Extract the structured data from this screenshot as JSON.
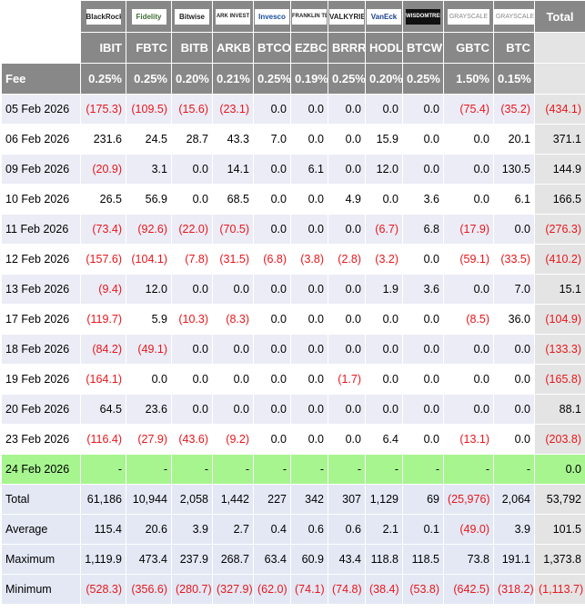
{
  "header": {
    "issuers": [
      "BlackRock",
      "Fidelity",
      "Bitwise",
      "ARK INVEST",
      "Invesco",
      "FRANKLIN TEMPLETON",
      "VALKYRIE",
      "VanEck",
      "WISDOMTREE",
      "GRAYSCALE",
      "GRAYSCALE"
    ],
    "total_label": "Total",
    "tickers": [
      "IBIT",
      "FBTC",
      "BITB",
      "ARKB",
      "BTCO",
      "EZBC",
      "BRRR",
      "HODL",
      "BTCW",
      "GBTC",
      "BTC"
    ],
    "fee_label": "Fee",
    "fees": [
      "0.25%",
      "0.25%",
      "0.20%",
      "0.21%",
      "0.25%",
      "0.19%",
      "0.25%",
      "0.20%",
      "0.25%",
      "1.50%",
      "0.15%"
    ]
  },
  "rows": [
    {
      "date": "05 Feb 2026",
      "values": [
        "(175.3)",
        "(109.5)",
        "(15.6)",
        "(23.1)",
        "0.0",
        "0.0",
        "0.0",
        "0.0",
        "0.0",
        "(75.4)",
        "(35.2)"
      ],
      "total": "(434.1)"
    },
    {
      "date": "06 Feb 2026",
      "values": [
        "231.6",
        "24.5",
        "28.7",
        "43.3",
        "7.0",
        "0.0",
        "0.0",
        "15.9",
        "0.0",
        "0.0",
        "20.1"
      ],
      "total": "371.1"
    },
    {
      "date": "09 Feb 2026",
      "values": [
        "(20.9)",
        "3.1",
        "0.0",
        "14.1",
        "0.0",
        "6.1",
        "0.0",
        "12.0",
        "0.0",
        "0.0",
        "130.5"
      ],
      "total": "144.9"
    },
    {
      "date": "10 Feb 2026",
      "values": [
        "26.5",
        "56.9",
        "0.0",
        "68.5",
        "0.0",
        "0.0",
        "4.9",
        "0.0",
        "3.6",
        "0.0",
        "6.1"
      ],
      "total": "166.5"
    },
    {
      "date": "11 Feb 2026",
      "values": [
        "(73.4)",
        "(92.6)",
        "(22.0)",
        "(70.5)",
        "0.0",
        "0.0",
        "0.0",
        "(6.7)",
        "6.8",
        "(17.9)",
        "0.0"
      ],
      "total": "(276.3)"
    },
    {
      "date": "12 Feb 2026",
      "values": [
        "(157.6)",
        "(104.1)",
        "(7.8)",
        "(31.5)",
        "(6.8)",
        "(3.8)",
        "(2.8)",
        "(3.2)",
        "0.0",
        "(59.1)",
        "(33.5)"
      ],
      "total": "(410.2)"
    },
    {
      "date": "13 Feb 2026",
      "values": [
        "(9.4)",
        "12.0",
        "0.0",
        "0.0",
        "0.0",
        "0.0",
        "0.0",
        "1.9",
        "3.6",
        "0.0",
        "7.0"
      ],
      "total": "15.1"
    },
    {
      "date": "17 Feb 2026",
      "values": [
        "(119.7)",
        "5.9",
        "(10.3)",
        "(8.3)",
        "0.0",
        "0.0",
        "0.0",
        "0.0",
        "0.0",
        "(8.5)",
        "36.0"
      ],
      "total": "(104.9)"
    },
    {
      "date": "18 Feb 2026",
      "values": [
        "(84.2)",
        "(49.1)",
        "0.0",
        "0.0",
        "0.0",
        "0.0",
        "0.0",
        "0.0",
        "0.0",
        "0.0",
        "0.0"
      ],
      "total": "(133.3)"
    },
    {
      "date": "19 Feb 2026",
      "values": [
        "(164.1)",
        "0.0",
        "0.0",
        "0.0",
        "0.0",
        "0.0",
        "(1.7)",
        "0.0",
        "0.0",
        "0.0",
        "0.0"
      ],
      "total": "(165.8)"
    },
    {
      "date": "20 Feb 2026",
      "values": [
        "64.5",
        "23.6",
        "0.0",
        "0.0",
        "0.0",
        "0.0",
        "0.0",
        "0.0",
        "0.0",
        "0.0",
        "0.0"
      ],
      "total": "88.1"
    },
    {
      "date": "23 Feb 2026",
      "values": [
        "(116.4)",
        "(27.9)",
        "(43.6)",
        "(9.2)",
        "0.0",
        "0.0",
        "0.0",
        "6.4",
        "0.0",
        "(13.1)",
        "0.0"
      ],
      "total": "(203.8)"
    },
    {
      "date": "24 Feb 2026",
      "values": [
        "-",
        "-",
        "-",
        "-",
        "-",
        "-",
        "-",
        "-",
        "-",
        "-",
        "-"
      ],
      "total": "0.0",
      "highlight": true
    }
  ],
  "summary": [
    {
      "label": "Total",
      "values": [
        "61,186",
        "10,944",
        "2,058",
        "1,442",
        "227",
        "342",
        "307",
        "1,129",
        "69",
        "(25,976)",
        "2,064"
      ],
      "total": "53,792"
    },
    {
      "label": "Average",
      "values": [
        "115.4",
        "20.6",
        "3.9",
        "2.7",
        "0.4",
        "0.6",
        "0.6",
        "2.1",
        "0.1",
        "(49.0)",
        "3.9"
      ],
      "total": "101.5"
    },
    {
      "label": "Maximum",
      "values": [
        "1,119.9",
        "473.4",
        "237.9",
        "268.7",
        "63.4",
        "60.9",
        "43.4",
        "118.8",
        "118.5",
        "73.8",
        "191.1"
      ],
      "total": "1,373.8"
    },
    {
      "label": "Minimum",
      "values": [
        "(528.3)",
        "(356.6)",
        "(280.7)",
        "(327.9)",
        "(62.0)",
        "(74.1)",
        "(74.8)",
        "(38.4)",
        "(53.8)",
        "(642.5)",
        "(318.2)"
      ],
      "total": "(1,113.7)"
    }
  ],
  "colors": {
    "negative": "#e8161b",
    "header_bg": "#888888",
    "highlight_row": "#a6f58f"
  }
}
